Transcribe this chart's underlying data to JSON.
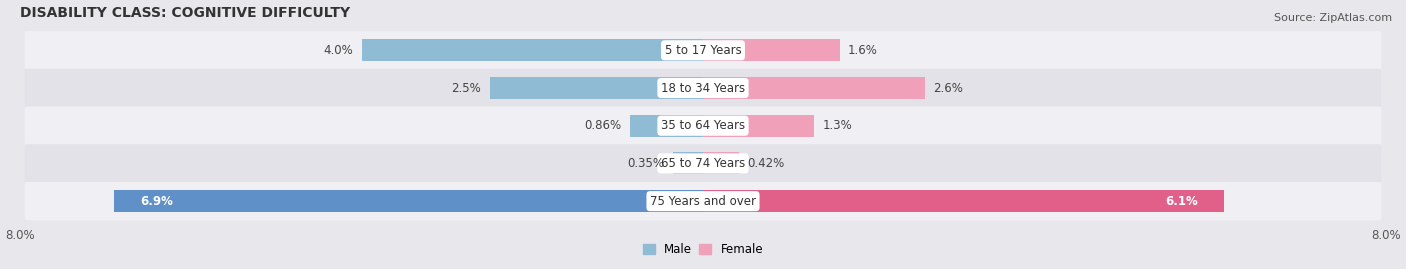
{
  "title": "DISABILITY CLASS: COGNITIVE DIFFICULTY",
  "source": "Source: ZipAtlas.com",
  "categories": [
    "5 to 17 Years",
    "18 to 34 Years",
    "35 to 64 Years",
    "65 to 74 Years",
    "75 Years and over"
  ],
  "male_values": [
    4.0,
    2.5,
    0.86,
    0.35,
    6.9
  ],
  "female_values": [
    1.6,
    2.6,
    1.3,
    0.42,
    6.1
  ],
  "male_labels": [
    "4.0%",
    "2.5%",
    "0.86%",
    "0.35%",
    "6.9%"
  ],
  "female_labels": [
    "1.6%",
    "2.6%",
    "1.3%",
    "0.42%",
    "6.1%"
  ],
  "male_color_normal": "#8fbcd4",
  "female_color_normal": "#f0a0b8",
  "male_color_last": "#6090c8",
  "female_color_last": "#e0608a",
  "xlim_left": -8.0,
  "xlim_right": 8.0,
  "x_tick_labels": [
    "8.0%",
    "8.0%"
  ],
  "background_color": "#e8e8ec",
  "row_bg_light": "#f0f0f4",
  "row_bg_dark": "#e2e2e8",
  "title_fontsize": 10,
  "label_fontsize": 8.5,
  "tick_fontsize": 8.5,
  "source_fontsize": 8
}
